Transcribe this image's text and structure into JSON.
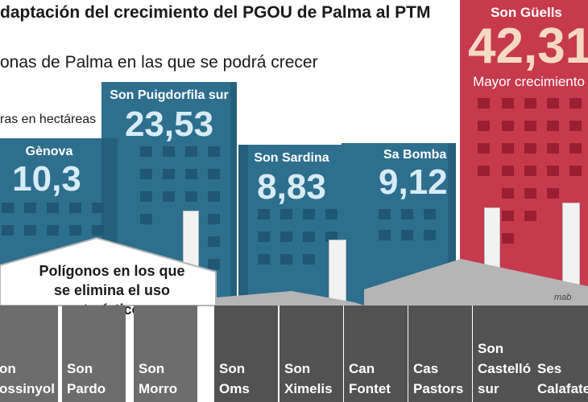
{
  "title": "daptación del crecimiento del PGOU de Palma al PTM",
  "subtitle": "onas de Palma en las que se podrá crecer",
  "units": "ras en hectáreas",
  "growth_zones": [
    {
      "name": "Gènova",
      "value": "10,3"
    },
    {
      "name": "Son Puigdorfila sur",
      "value": "23,53"
    },
    {
      "name": "Son Sardina",
      "value": "8,83"
    },
    {
      "name": "Sa Bomba",
      "value": "9,12"
    },
    {
      "name": "Son Güells",
      "value": "42,31",
      "note": "Mayor crecimiento"
    }
  ],
  "polygons_heading": [
    "Polígonos en los que",
    "se elimina el uso turístico"
  ],
  "polygons": [
    {
      "line1": "on",
      "line2": "ossinyol"
    },
    {
      "line1": "Son",
      "line2": "Pardo"
    },
    {
      "line1": "Son",
      "line2": "Morro"
    },
    {
      "line1": "Son",
      "line2": "Oms"
    },
    {
      "line1": "Son",
      "line2": "Ximelis"
    },
    {
      "line1": "Can",
      "line2": "Fontet"
    },
    {
      "line1": "Cas",
      "line2": "Pastors"
    },
    {
      "line1": "Son",
      "line2": "Castelló",
      "line3": "sur"
    },
    {
      "line1": "Ses",
      "line2": "Calafate"
    }
  ],
  "credit": "mab",
  "colors": {
    "blue_building": "#2e6f8e",
    "red_building": "#c73a4d",
    "value_text": "#d7ecf7",
    "polygon_card": "#6d6d6d",
    "polygon_card_dark": "#525252",
    "factory_roof": "#b5b5b5"
  }
}
